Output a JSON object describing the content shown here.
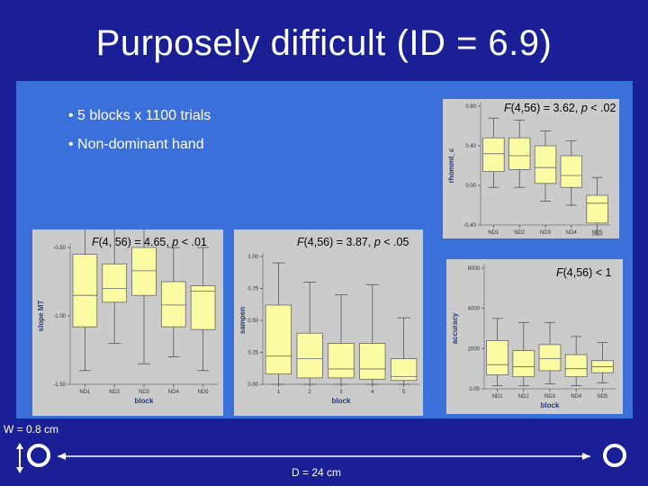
{
  "title": "Purposely difficult (ID = 6.9)",
  "bullets": [
    "• 5 blocks x 1100 trials",
    "• Non-dominant hand"
  ],
  "colors": {
    "background": "#1a1f96",
    "panel": "#3b6fd9",
    "chart_bg": "#cbcbcb",
    "box_fill": "#fbfba4"
  },
  "stats": {
    "top_right": {
      "f": "F",
      "rest": "(4,56) = 3.62, ",
      "p": "p",
      "tail": " < .02"
    },
    "slope": {
      "f": "F",
      "rest": "(4, 56) = 4.65, ",
      "p": "p",
      "tail": " < .01"
    },
    "sampen": {
      "f": "F",
      "rest": "(4,56) = 3.87, ",
      "p": "p",
      "tail": " < .05"
    },
    "accuracy": {
      "f": "F",
      "rest": "(4,56) < 1",
      "p": "",
      "tail": ""
    }
  },
  "width_label": "W = 0.8 cm",
  "distance_label": "D = 24 cm",
  "chart_data": [
    {
      "id": "rhomm",
      "type": "box",
      "xlabel": "block",
      "ylabel": "rhommt_c",
      "categories": [
        "ND1",
        "ND2",
        "ND3",
        "ND4",
        "ND5"
      ],
      "yticks": [
        "0.80",
        "0.40",
        "0.00",
        "-0.40"
      ],
      "boxes": [
        {
          "q1": 0.14,
          "median": 0.32,
          "q3": 0.48,
          "wlo": -0.02,
          "whi": 0.68
        },
        {
          "q1": 0.16,
          "median": 0.3,
          "q3": 0.48,
          "wlo": -0.02,
          "whi": 0.66
        },
        {
          "q1": 0.02,
          "median": 0.18,
          "q3": 0.4,
          "wlo": -0.16,
          "whi": 0.55
        },
        {
          "q1": -0.02,
          "median": 0.1,
          "q3": 0.3,
          "wlo": -0.2,
          "whi": 0.45
        },
        {
          "q1": -0.38,
          "median": -0.18,
          "q3": -0.1,
          "wlo": -0.5,
          "whi": 0.08
        }
      ]
    },
    {
      "id": "slope",
      "type": "box",
      "xlabel": "block",
      "ylabel": "slope MT",
      "categories": [
        "ND1",
        "ND2",
        "ND3",
        "ND4",
        "ND5"
      ],
      "yticks": [
        "-0.50",
        "-1.00",
        "-1.50"
      ],
      "boxes": [
        {
          "q1": -1.08,
          "median": -0.85,
          "q3": -0.55,
          "wlo": -1.4,
          "whi": -0.35
        },
        {
          "q1": -0.9,
          "median": -0.8,
          "q3": -0.62,
          "wlo": -1.2,
          "whi": -0.35
        },
        {
          "q1": -0.85,
          "median": -0.67,
          "q3": -0.5,
          "wlo": -1.35,
          "whi": -0.2
        },
        {
          "q1": -1.08,
          "median": -0.92,
          "q3": -0.75,
          "wlo": -1.3,
          "whi": -0.5
        },
        {
          "q1": -1.1,
          "median": -0.82,
          "q3": -0.78,
          "wlo": -1.4,
          "whi": -0.5
        }
      ]
    },
    {
      "id": "sampen",
      "type": "box",
      "xlabel": "block",
      "ylabel": "sampen",
      "categories": [
        "1",
        "2",
        "3",
        "4",
        "5"
      ],
      "yticks": [
        "1.00",
        "0.75",
        "0.50",
        "0.25",
        "0.00"
      ],
      "boxes": [
        {
          "q1": 0.08,
          "median": 0.22,
          "q3": 0.62,
          "wlo": 0.0,
          "whi": 0.95
        },
        {
          "q1": 0.05,
          "median": 0.2,
          "q3": 0.4,
          "wlo": 0.0,
          "whi": 0.8
        },
        {
          "q1": 0.05,
          "median": 0.12,
          "q3": 0.32,
          "wlo": 0.0,
          "whi": 0.7
        },
        {
          "q1": 0.04,
          "median": 0.12,
          "q3": 0.32,
          "wlo": 0.0,
          "whi": 0.78
        },
        {
          "q1": 0.03,
          "median": 0.06,
          "q3": 0.2,
          "wlo": 0.0,
          "whi": 0.52
        }
      ]
    },
    {
      "id": "accuracy",
      "type": "box",
      "xlabel": "block",
      "ylabel": "accuracy",
      "categories": [
        "ND1",
        "ND2",
        "ND3",
        "ND4",
        "ND5"
      ],
      "yticks": [
        "6000",
        "4000",
        "2000",
        "0.00"
      ],
      "boxes": [
        {
          "q1": 700,
          "median": 1200,
          "q3": 2400,
          "wlo": 150,
          "whi": 3500
        },
        {
          "q1": 600,
          "median": 1100,
          "q3": 1900,
          "wlo": 150,
          "whi": 3300
        },
        {
          "q1": 900,
          "median": 1500,
          "q3": 2200,
          "wlo": 250,
          "whi": 3300
        },
        {
          "q1": 600,
          "median": 1000,
          "q3": 1700,
          "wlo": 150,
          "whi": 2600
        },
        {
          "q1": 800,
          "median": 1100,
          "q3": 1400,
          "wlo": 300,
          "whi": 2300
        }
      ]
    }
  ]
}
